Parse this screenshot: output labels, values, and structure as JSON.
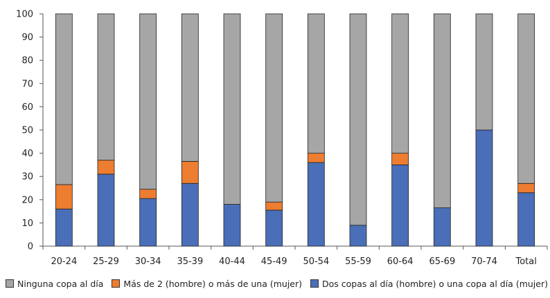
{
  "chart_data": {
    "type": "bar",
    "stacked": true,
    "categories": [
      "20-24",
      "25-29",
      "30-34",
      "35-39",
      "40-44",
      "45-49",
      "50-54",
      "55-59",
      "60-64",
      "65-69",
      "70-74",
      "Total"
    ],
    "series": [
      {
        "name": "Dos copas al día (hombre) o una copa al día (mujer)",
        "color": "#4a6eb7",
        "values": [
          16,
          31,
          20.5,
          27,
          18,
          15.5,
          36,
          9,
          35,
          16.5,
          50,
          23
        ]
      },
      {
        "name": "Más de 2 (hombre) o más de una (mujer)",
        "color": "#ed7d31",
        "values": [
          10.5,
          6,
          4,
          9.5,
          0,
          3.5,
          4,
          0,
          5,
          0,
          0,
          4
        ]
      },
      {
        "name": "Ninguna copa al día",
        "color": "#a6a6a6",
        "values": [
          73.5,
          63,
          75.5,
          63.5,
          82,
          81,
          60,
          91,
          60,
          83.5,
          50,
          73
        ]
      }
    ],
    "legend_order": [
      2,
      1,
      0
    ],
    "yticks": [
      0,
      10,
      20,
      30,
      40,
      50,
      60,
      70,
      80,
      90,
      100
    ],
    "ylim": [
      0,
      100
    ],
    "legend_position": "bottom",
    "grid": false,
    "title": "",
    "xlabel": "",
    "ylabel": ""
  }
}
